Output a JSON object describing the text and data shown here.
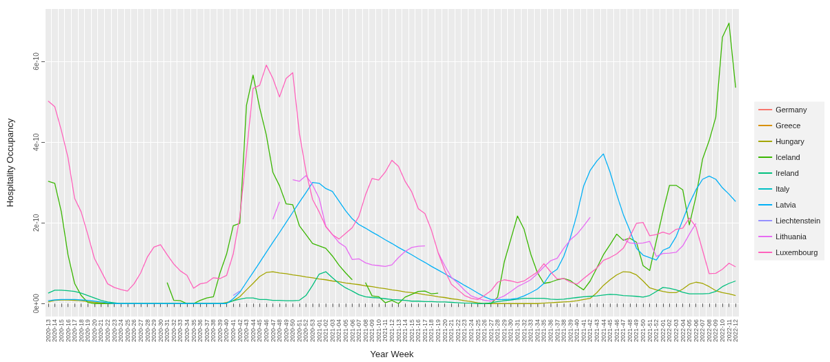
{
  "chart_data": {
    "type": "line",
    "xlabel": "Year Week",
    "ylabel": "Hospitality Occupancy",
    "legend": "right",
    "grid": true,
    "categories": [
      "2020-13",
      "2020-14",
      "2020-15",
      "2020-16",
      "2020-17",
      "2020-18",
      "2020-19",
      "2020-20",
      "2020-21",
      "2020-22",
      "2020-23",
      "2020-24",
      "2020-25",
      "2020-26",
      "2020-27",
      "2020-28",
      "2020-29",
      "2020-30",
      "2020-31",
      "2020-32",
      "2020-33",
      "2020-34",
      "2020-35",
      "2020-36",
      "2020-37",
      "2020-38",
      "2020-39",
      "2020-40",
      "2020-41",
      "2020-42",
      "2020-43",
      "2020-44",
      "2020-45",
      "2020-46",
      "2020-47",
      "2020-48",
      "2020-49",
      "2020-50",
      "2020-51",
      "2020-52",
      "2020-53",
      "2021-01",
      "2021-02",
      "2021-03",
      "2021-04",
      "2021-05",
      "2021-06",
      "2021-07",
      "2021-08",
      "2021-09",
      "2021-10",
      "2021-11",
      "2021-12",
      "2021-13",
      "2021-14",
      "2021-15",
      "2021-16",
      "2021-17",
      "2021-18",
      "2021-19",
      "2021-20",
      "2021-21",
      "2021-22",
      "2021-23",
      "2021-24",
      "2021-25",
      "2021-26",
      "2021-27",
      "2021-28",
      "2021-29",
      "2021-30",
      "2021-31",
      "2021-32",
      "2021-33",
      "2021-34",
      "2021-35",
      "2021-36",
      "2021-37",
      "2021-38",
      "2021-39",
      "2021-40",
      "2021-41",
      "2021-42",
      "2021-43",
      "2021-44",
      "2021-45",
      "2021-46",
      "2021-47",
      "2021-48",
      "2021-49",
      "2021-50",
      "2021-51",
      "2021-52",
      "2022-01",
      "2022-02",
      "2022-03",
      "2022-04",
      "2022-05",
      "2022-06",
      "2022-07",
      "2022-08",
      "2022-09",
      "2022-10",
      "2022-11",
      "2022-12"
    ],
    "ylim": [
      -3.2e-11,
      7.3e-10
    ],
    "yticks": [
      {
        "value": 0,
        "label": "0e+00"
      },
      {
        "value": 2e-10,
        "label": "2e-10"
      },
      {
        "value": 4e-10,
        "label": "4e-10"
      },
      {
        "value": 6e-10,
        "label": "6e-10"
      }
    ],
    "series": [
      {
        "name": "Germany",
        "color": "#f8766d",
        "values": [
          null,
          null,
          null,
          null,
          null,
          null,
          null,
          null,
          null,
          null,
          null,
          null,
          null,
          null,
          null,
          null,
          null,
          null,
          null,
          null,
          null,
          null,
          null,
          null,
          null,
          null,
          null,
          null,
          null,
          null,
          null,
          null,
          null,
          null,
          null,
          null,
          null,
          null,
          null,
          null,
          null,
          null,
          null,
          null,
          null,
          null,
          null,
          null,
          null,
          null,
          null,
          null,
          null,
          null,
          null,
          null,
          null,
          null,
          null,
          null,
          null,
          null,
          null,
          null,
          null,
          null,
          null,
          null,
          null,
          null,
          null,
          null,
          null,
          null,
          null,
          null,
          null,
          null,
          null,
          null,
          null,
          null,
          null,
          null,
          null,
          null,
          null,
          null,
          null,
          null,
          null,
          null,
          null,
          null,
          null,
          null,
          null,
          null,
          null,
          null,
          null,
          null,
          null,
          null,
          null
        ]
      },
      {
        "name": "Greece",
        "color": "#d89000",
        "values": [
          null,
          null,
          null,
          null,
          null,
          null,
          null,
          null,
          null,
          null,
          null,
          null,
          null,
          null,
          null,
          null,
          null,
          null,
          null,
          null,
          null,
          null,
          null,
          null,
          null,
          null,
          null,
          null,
          null,
          null,
          null,
          null,
          null,
          null,
          null,
          null,
          null,
          null,
          null,
          null,
          null,
          null,
          null,
          null,
          null,
          null,
          null,
          null,
          null,
          null,
          null,
          null,
          null,
          null,
          null,
          null,
          null,
          null,
          null,
          null,
          null,
          null,
          null,
          null,
          null,
          null,
          null,
          null,
          null,
          null,
          null,
          null,
          null,
          null,
          null,
          null,
          null,
          null,
          null,
          null,
          null,
          null,
          null,
          null,
          null,
          null,
          null,
          null,
          null,
          null,
          null,
          null,
          null,
          null,
          null,
          null,
          null,
          null,
          null,
          null,
          null,
          null,
          null,
          null,
          null
        ]
      },
      {
        "name": "Hungary",
        "color": "#a3a500",
        "values": [
          4e-12,
          8e-12,
          9e-12,
          9e-12,
          8e-12,
          7e-12,
          5e-12,
          3e-12,
          2e-12,
          0,
          0,
          0,
          0,
          0,
          0,
          0,
          0,
          0,
          0,
          0,
          0,
          0,
          0,
          0,
          0,
          0,
          0,
          3e-12,
          7e-12,
          1.7e-11,
          3.4e-11,
          5e-11,
          6.7e-11,
          7.7e-11,
          7.9e-11,
          7.6e-11,
          7.4e-11,
          7.1e-11,
          6.9e-11,
          6.6e-11,
          6.4e-11,
          6.1e-11,
          5.9e-11,
          5.6e-11,
          5.4e-11,
          5.1e-11,
          4.9e-11,
          4.7e-11,
          4.4e-11,
          4.2e-11,
          3.9e-11,
          3.7e-11,
          3.4e-11,
          3.2e-11,
          2.9e-11,
          2.7e-11,
          2.5e-11,
          2.2e-11,
          2e-11,
          1.7e-11,
          1.5e-11,
          1.2e-11,
          1e-11,
          7e-12,
          5e-12,
          2e-12,
          0,
          0,
          0,
          0,
          0,
          0,
          0,
          0,
          0,
          1e-12,
          2e-12,
          3e-12,
          4e-12,
          5e-12,
          7e-12,
          1e-11,
          1.3e-11,
          2.7e-11,
          4.5e-11,
          5.9e-11,
          7.1e-11,
          7.9e-11,
          7.8e-11,
          7.1e-11,
          5.6e-11,
          3.9e-11,
          3.4e-11,
          3e-11,
          2.7e-11,
          2.7e-11,
          3.6e-11,
          4.8e-11,
          5.3e-11,
          5e-11,
          4.2e-11,
          3.2e-11,
          2.7e-11,
          2.4e-11,
          2e-11
        ]
      },
      {
        "name": "Iceland",
        "color": "#39b600",
        "values": [
          3.03e-10,
          2.98e-10,
          2.27e-10,
          1.21e-10,
          5e-11,
          2e-11,
          3e-12,
          0,
          0,
          0,
          0,
          null,
          null,
          null,
          null,
          null,
          null,
          null,
          5.2e-11,
          8e-12,
          7e-12,
          0,
          0,
          8e-12,
          1.4e-11,
          1.7e-11,
          7.6e-11,
          1.23e-10,
          1.93e-10,
          1.99e-10,
          4.91e-10,
          5.66e-10,
          4.85e-10,
          4.18e-10,
          3.25e-10,
          2.92e-10,
          2.47e-10,
          2.45e-10,
          1.93e-10,
          1.71e-10,
          1.49e-10,
          1.43e-10,
          1.37e-10,
          1.18e-10,
          9.5e-11,
          7.6e-11,
          5.9e-11,
          null,
          5.2e-11,
          1.9e-11,
          1.7e-11,
          2e-12,
          8e-12,
          0,
          1.6e-11,
          2.3e-11,
          3e-11,
          3.1e-11,
          2.4e-11,
          2.6e-11,
          null,
          null,
          null,
          null,
          null,
          null,
          0,
          0,
          1.6e-11,
          1.03e-10,
          1.6e-10,
          2.17e-10,
          1.84e-10,
          1.23e-10,
          7.7e-11,
          5e-11,
          5.3e-11,
          5.9e-11,
          6.2e-11,
          5.7e-11,
          4.5e-11,
          3.4e-11,
          5.6e-11,
          8.8e-11,
          1.21e-10,
          1.46e-10,
          1.72e-10,
          1.57e-10,
          1.62e-10,
          1.52e-10,
          9.4e-11,
          8.2e-11,
          1.55e-10,
          2.27e-10,
          2.93e-10,
          2.93e-10,
          2.82e-10,
          1.95e-10,
          2.65e-10,
          3.58e-10,
          4.04e-10,
          4.62e-10,
          6.6e-10,
          6.95e-10,
          5.35e-10
        ]
      },
      {
        "name": "Ireland",
        "color": "#00bf7d",
        "values": [
          2.6e-11,
          3.3e-11,
          3.3e-11,
          3.2e-11,
          3e-11,
          2.6e-11,
          2e-11,
          1.4e-11,
          8e-12,
          4e-12,
          2e-12,
          0,
          0,
          0,
          0,
          0,
          0,
          0,
          0,
          0,
          0,
          0,
          0,
          0,
          0,
          0,
          0,
          1e-12,
          7e-12,
          1.1e-11,
          1.4e-11,
          1.4e-11,
          1e-11,
          1e-11,
          8e-12,
          8e-12,
          7e-12,
          7e-12,
          8e-12,
          2e-11,
          4.5e-11,
          7.3e-11,
          7.9e-11,
          6.4e-11,
          5e-11,
          3.9e-11,
          3.1e-11,
          2.2e-11,
          1.7e-11,
          1.5e-11,
          1.4e-11,
          1.2e-11,
          1e-11,
          9e-12,
          8e-12,
          6e-12,
          6e-12,
          5e-12,
          5e-12,
          4e-12,
          4e-12,
          3e-12,
          2e-12,
          1e-12,
          1e-12,
          0,
          0,
          2e-12,
          5e-12,
          7e-12,
          9e-12,
          1.1e-11,
          1.3e-11,
          1.3e-11,
          1.3e-11,
          1.3e-11,
          1.1e-11,
          1e-11,
          1.1e-11,
          1.3e-11,
          1.5e-11,
          1.7e-11,
          1.8e-11,
          1.9e-11,
          2.1e-11,
          2.3e-11,
          2.2e-11,
          2e-11,
          1.9e-11,
          1.8e-11,
          1.6e-11,
          2e-11,
          3e-11,
          4e-11,
          3.8e-11,
          3.4e-11,
          2.8e-11,
          2.4e-11,
          2.4e-11,
          2.4e-11,
          2.5e-11,
          3e-11,
          4.2e-11,
          5e-11,
          5.6e-11
        ]
      },
      {
        "name": "Italy",
        "color": "#00bfc4",
        "values": [
          null,
          null,
          null,
          null,
          null,
          null,
          null,
          null,
          null,
          null,
          null,
          null,
          null,
          null,
          null,
          null,
          null,
          null,
          null,
          null,
          null,
          null,
          null,
          null,
          null,
          null,
          null,
          null,
          null,
          null,
          null,
          null,
          null,
          null,
          null,
          null,
          null,
          null,
          null,
          null,
          null,
          null,
          null,
          null,
          null,
          null,
          null,
          null,
          null,
          null,
          null,
          null,
          null,
          null,
          null,
          null,
          null,
          null,
          null,
          null,
          null,
          null,
          null,
          null,
          null,
          null,
          null,
          null,
          null,
          null,
          null,
          null,
          null,
          null,
          null,
          null,
          null,
          null,
          null,
          null,
          null,
          null,
          null,
          null,
          null,
          null,
          null,
          null,
          null,
          null,
          null,
          null,
          null,
          null,
          null,
          null,
          null,
          null,
          null,
          null,
          null,
          null,
          null,
          null,
          null
        ]
      },
      {
        "name": "Latvia",
        "color": "#00b0f6",
        "values": [
          7e-12,
          9e-12,
          1e-11,
          1e-11,
          1e-11,
          9e-12,
          8e-12,
          6e-12,
          4e-12,
          2e-12,
          0,
          0,
          0,
          0,
          0,
          0,
          0,
          0,
          0,
          0,
          0,
          0,
          0,
          0,
          0,
          0,
          0,
          0,
          1.2e-11,
          2.8e-11,
          5.3e-11,
          7.7e-11,
          1.02e-10,
          1.27e-10,
          1.52e-10,
          1.76e-10,
          2.01e-10,
          2.26e-10,
          2.51e-10,
          2.75e-10,
          3e-10,
          2.98e-10,
          2.85e-10,
          2.78e-10,
          2.54e-10,
          2.3e-10,
          2.1e-10,
          1.96e-10,
          1.87e-10,
          1.77e-10,
          1.68e-10,
          1.58e-10,
          1.49e-10,
          1.39e-10,
          1.3e-10,
          1.21e-10,
          1.11e-10,
          1.02e-10,
          9.2e-11,
          8.3e-11,
          7.4e-11,
          6.4e-11,
          5.5e-11,
          4.5e-11,
          3.6e-11,
          2.6e-11,
          1.7e-11,
          1e-11,
          1e-11,
          1e-11,
          1.1e-11,
          1.3e-11,
          1.9e-11,
          2.7e-11,
          3.6e-11,
          5e-11,
          7.4e-11,
          8.5e-11,
          1.17e-10,
          1.63e-10,
          2.21e-10,
          2.91e-10,
          3.3e-10,
          3.53e-10,
          3.71e-10,
          3.26e-10,
          2.71e-10,
          2.21e-10,
          1.81e-10,
          1.37e-10,
          1.2e-10,
          1.14e-10,
          1.08e-10,
          1.32e-10,
          1.39e-10,
          1.66e-10,
          2.07e-10,
          2.48e-10,
          2.82e-10,
          3.08e-10,
          3.16e-10,
          3.08e-10,
          2.87e-10,
          2.71e-10,
          2.53e-10
        ]
      },
      {
        "name": "Liechtenstein",
        "color": "#9590ff",
        "x": [
          "2020-41",
          "2020-42"
        ],
        "values": [
          2e-11,
          3.1e-11
        ]
      },
      {
        "name": "Lithuania",
        "color": "#e76bf3",
        "values": [
          null,
          null,
          null,
          null,
          null,
          null,
          null,
          null,
          null,
          null,
          null,
          null,
          null,
          null,
          null,
          null,
          null,
          null,
          null,
          null,
          null,
          null,
          null,
          null,
          null,
          null,
          null,
          null,
          null,
          null,
          null,
          null,
          null,
          null,
          2.09e-10,
          2.52e-10,
          null,
          3.07e-10,
          3.03e-10,
          3.17e-10,
          2.94e-10,
          2.61e-10,
          1.91e-10,
          1.71e-10,
          1.51e-10,
          1.4e-10,
          1.09e-10,
          1.11e-10,
          1.01e-10,
          9.6e-11,
          9.4e-11,
          9.2e-11,
          9.6e-11,
          1.14e-10,
          1.29e-10,
          1.39e-10,
          1.42e-10,
          1.43e-10,
          null,
          1.26e-10,
          9.4e-11,
          6.5e-11,
          5e-11,
          3.3e-11,
          1.9e-11,
          1.3e-11,
          8e-12,
          6e-12,
          1.2e-11,
          1.9e-11,
          3e-11,
          4.2e-11,
          5e-11,
          5.9e-11,
          7.4e-11,
          9.1e-11,
          1.06e-10,
          1.12e-10,
          1.37e-10,
          1.58e-10,
          1.72e-10,
          1.92e-10,
          2.14e-10,
          null,
          null,
          null,
          null,
          1.6e-10,
          1.5e-10,
          1.49e-10,
          1.5e-10,
          1.54e-10,
          1.17e-10,
          1.24e-10,
          1.25e-10,
          1.27e-10,
          1.43e-10,
          1.72e-10,
          1.99e-10,
          null,
          null,
          null,
          null,
          null,
          null
        ]
      },
      {
        "name": "Luxembourg",
        "color": "#ff62bc",
        "values": [
          5.02e-10,
          4.88e-10,
          4.29e-10,
          3.62e-10,
          2.61e-10,
          2.27e-10,
          1.71e-10,
          1.12e-10,
          8.1e-11,
          4.9e-11,
          4e-11,
          3.5e-11,
          3.1e-11,
          4.9e-11,
          7.6e-11,
          1.15e-10,
          1.4e-10,
          1.46e-10,
          1.21e-10,
          9.8e-11,
          8.1e-11,
          7e-11,
          3.8e-11,
          4.9e-11,
          5.2e-11,
          6.4e-11,
          6.2e-11,
          7e-11,
          1.23e-10,
          2.16e-10,
          3.73e-10,
          5.33e-10,
          5.41e-10,
          5.91e-10,
          5.58e-10,
          5.12e-10,
          5.58e-10,
          5.72e-10,
          4.23e-10,
          3.28e-10,
          2.58e-10,
          2.27e-10,
          1.91e-10,
          1.71e-10,
          1.6e-10,
          1.74e-10,
          1.88e-10,
          2.16e-10,
          2.69e-10,
          3.1e-10,
          3.06e-10,
          3.26e-10,
          3.55e-10,
          3.4e-10,
          3.03e-10,
          2.77e-10,
          2.35e-10,
          2.23e-10,
          1.81e-10,
          1.26e-10,
          8.2e-11,
          4.8e-11,
          3.4e-11,
          2e-11,
          1.3e-11,
          1e-11,
          2e-11,
          3.2e-11,
          5.3e-11,
          5.9e-11,
          5.6e-11,
          5.2e-11,
          5.6e-11,
          6.7e-11,
          7.8e-11,
          9.9e-11,
          7.9e-11,
          6.1e-11,
          6.2e-11,
          5.3e-11,
          4.8e-11,
          6.2e-11,
          7.5e-11,
          8.8e-11,
          1.07e-10,
          1.14e-10,
          1.23e-10,
          1.37e-10,
          1.66e-10,
          1.99e-10,
          2.01e-10,
          1.68e-10,
          1.71e-10,
          1.77e-10,
          1.72e-10,
          1.84e-10,
          1.87e-10,
          2.12e-10,
          1.9e-10,
          1.32e-10,
          7.4e-11,
          7.5e-11,
          8.5e-11,
          1e-10,
          9.1e-11
        ]
      }
    ]
  }
}
